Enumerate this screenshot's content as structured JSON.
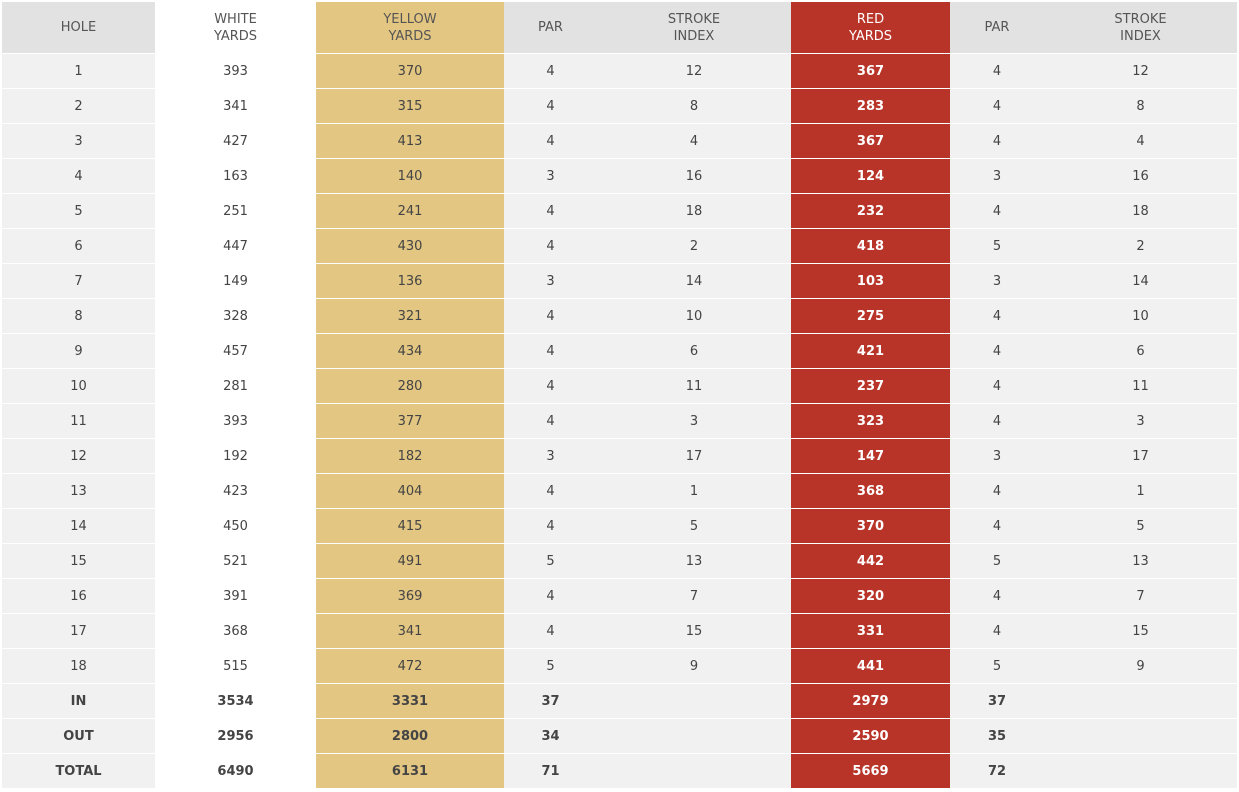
{
  "table": {
    "header": [
      "HOLE",
      "WHITE YARDS",
      "YELLOW YARDS",
      "PAR",
      "STROKE INDEX",
      "RED YARDS",
      "PAR",
      "STROKE INDEX"
    ],
    "rows": [
      [
        1,
        393,
        370,
        4,
        12,
        367,
        4,
        12
      ],
      [
        2,
        341,
        315,
        4,
        8,
        283,
        4,
        8
      ],
      [
        3,
        427,
        413,
        4,
        4,
        367,
        4,
        4
      ],
      [
        4,
        163,
        140,
        3,
        16,
        124,
        3,
        16
      ],
      [
        5,
        251,
        241,
        4,
        18,
        232,
        4,
        18
      ],
      [
        6,
        447,
        430,
        4,
        2,
        418,
        5,
        2
      ],
      [
        7,
        149,
        136,
        3,
        14,
        103,
        3,
        14
      ],
      [
        8,
        328,
        321,
        4,
        10,
        275,
        4,
        10
      ],
      [
        9,
        457,
        434,
        4,
        6,
        421,
        4,
        6
      ],
      [
        10,
        281,
        280,
        4,
        11,
        237,
        4,
        11
      ],
      [
        11,
        393,
        377,
        4,
        3,
        323,
        4,
        3
      ],
      [
        12,
        192,
        182,
        3,
        17,
        147,
        3,
        17
      ],
      [
        13,
        423,
        404,
        4,
        1,
        368,
        4,
        1
      ],
      [
        14,
        450,
        415,
        4,
        5,
        370,
        4,
        5
      ],
      [
        15,
        521,
        491,
        5,
        13,
        442,
        5,
        13
      ],
      [
        16,
        391,
        369,
        4,
        7,
        320,
        4,
        7
      ],
      [
        17,
        368,
        341,
        4,
        15,
        331,
        4,
        15
      ],
      [
        18,
        515,
        472,
        5,
        9,
        441,
        5,
        9
      ]
    ],
    "totals": [
      [
        "IN",
        3534,
        3331,
        37,
        null,
        2979,
        37,
        null
      ],
      [
        "OUT",
        2956,
        2800,
        34,
        null,
        2590,
        35,
        null
      ],
      [
        "TOTAL",
        6490,
        6131,
        71,
        null,
        5669,
        72,
        null
      ]
    ]
  }
}
